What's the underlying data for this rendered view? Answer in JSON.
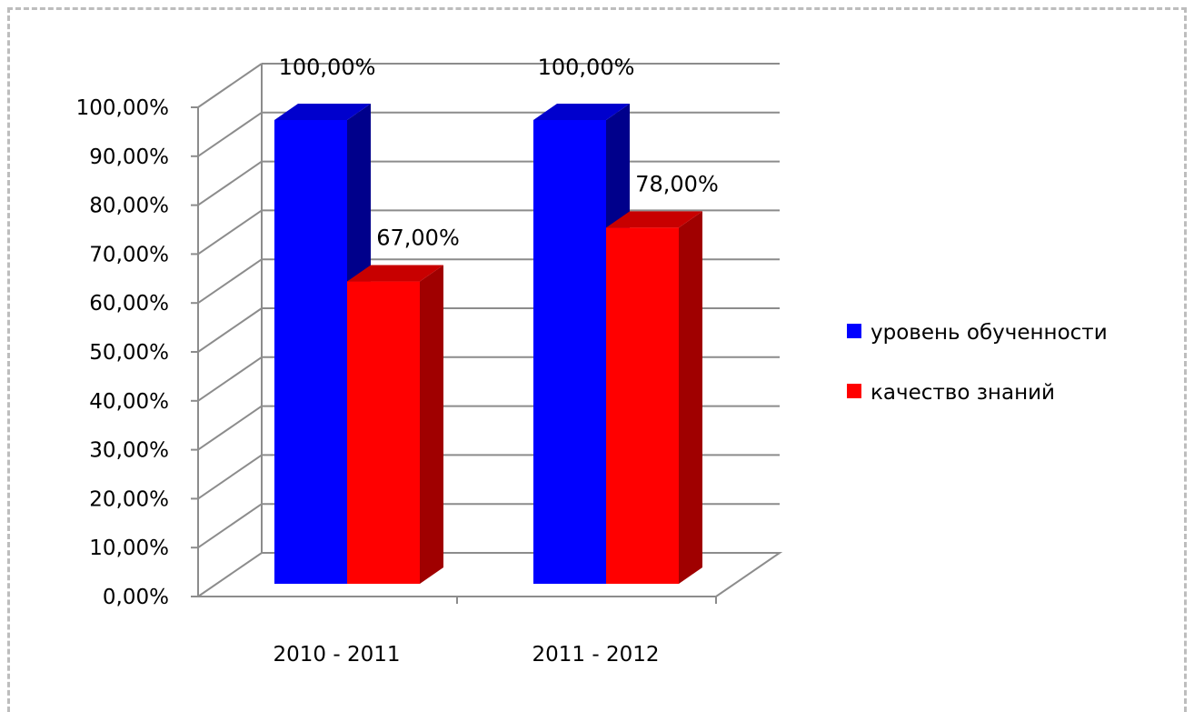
{
  "chart_data": {
    "type": "bar",
    "style": "3d-clustered-column",
    "categories": [
      "2010 - 2011",
      "2011 - 2012"
    ],
    "series": [
      {
        "name": "уровень обученности",
        "values": [
          1.0,
          1.0
        ],
        "labels": [
          "100,00%",
          "100,00%"
        ],
        "color": "#0000ff",
        "side_color": "#00008b",
        "top_color": "#0000cd"
      },
      {
        "name": "качество знаний",
        "values": [
          0.67,
          0.78
        ],
        "labels": [
          "67,00%",
          "78,00%"
        ],
        "color": "#ff0000",
        "side_color": "#a00000",
        "top_color": "#c80000"
      }
    ],
    "ylim": [
      0,
      1
    ],
    "y_ticks": [
      "0,00%",
      "10,00%",
      "20,00%",
      "30,00%",
      "40,00%",
      "50,00%",
      "60,00%",
      "70,00%",
      "80,00%",
      "90,00%",
      "100,00%"
    ],
    "grid": true,
    "legend_position": "right"
  }
}
